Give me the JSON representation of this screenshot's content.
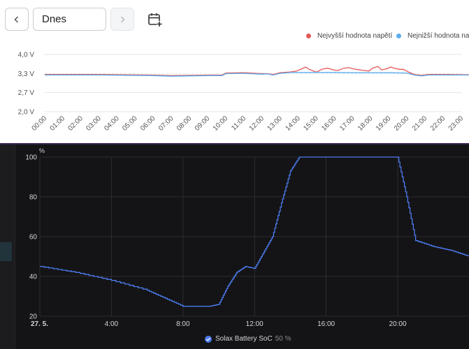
{
  "toolbar": {
    "date_value": "Dnes",
    "prev_icon": "chevron-left-icon",
    "next_icon": "chevron-right-icon",
    "calendar_icon": "calendar-add-icon"
  },
  "voltage_chart_data": {
    "type": "line",
    "ylabels": [
      "4,0 V",
      "3,3 V",
      "2,7 V",
      "2,0 V"
    ],
    "ylim": [
      2.0,
      4.0
    ],
    "categories": [
      "00:00",
      "01:00",
      "02:00",
      "03:00",
      "04:00",
      "05:00",
      "06:00",
      "07:00",
      "08:00",
      "09:00",
      "10:00",
      "11:00",
      "12:00",
      "13:00",
      "14:00",
      "15:00",
      "16:00",
      "17:00",
      "18:00",
      "19:00",
      "20:00",
      "21:00",
      "22:00",
      "23:00"
    ],
    "series": [
      {
        "name": "Nejvyšší hodnota napětí",
        "color": "#e45858",
        "x": [
          0,
          3,
          6,
          7,
          9,
          9.8,
          10,
          11,
          12,
          12.3,
          12.6,
          13,
          13.6,
          13.9,
          14.2,
          14.4,
          14.6,
          15,
          15.3,
          15.6,
          16,
          16.2,
          16.5,
          16.8,
          17,
          17.5,
          17.9,
          18.1,
          18.4,
          18.6,
          18.9,
          19.1,
          19.3,
          19.6,
          19.8,
          20.1,
          20.4,
          20.8,
          21.2,
          22,
          23.5
        ],
        "values": [
          3.3,
          3.3,
          3.28,
          3.26,
          3.28,
          3.28,
          3.35,
          3.36,
          3.33,
          3.33,
          3.3,
          3.36,
          3.39,
          3.42,
          3.5,
          3.56,
          3.48,
          3.38,
          3.48,
          3.52,
          3.45,
          3.44,
          3.52,
          3.54,
          3.5,
          3.45,
          3.42,
          3.52,
          3.58,
          3.46,
          3.5,
          3.56,
          3.52,
          3.48,
          3.48,
          3.38,
          3.3,
          3.27,
          3.3,
          3.3,
          3.29
        ]
      },
      {
        "name": "Nejnižší hodnota napětí",
        "color": "#5aaeee",
        "x": [
          0,
          3,
          6,
          7,
          9,
          9.8,
          10,
          11,
          12,
          12.3,
          12.6,
          13,
          13.6,
          14,
          15,
          16,
          17,
          18,
          19,
          20,
          20.4,
          20.8,
          21.2,
          22,
          23.5
        ],
        "values": [
          3.28,
          3.28,
          3.26,
          3.24,
          3.26,
          3.26,
          3.33,
          3.34,
          3.31,
          3.32,
          3.28,
          3.34,
          3.37,
          3.37,
          3.37,
          3.37,
          3.36,
          3.36,
          3.36,
          3.35,
          3.28,
          3.25,
          3.28,
          3.28,
          3.28
        ]
      }
    ]
  },
  "soc_chart_data": {
    "type": "line",
    "unit": "%",
    "ylabels": [
      "100",
      "80",
      "60",
      "40",
      "20"
    ],
    "ylim": [
      20,
      100
    ],
    "xlabels": [
      "27. 5.",
      "4:00",
      "8:00",
      "12:00",
      "16:00",
      "20:00"
    ],
    "xlim": [
      0,
      24
    ],
    "series": [
      {
        "name": "Solax Battery SoC",
        "current_value": "50 %",
        "color": "#4c7bf0",
        "x": [
          0,
          2,
          4,
          6,
          7,
          8,
          9,
          9.5,
          10,
          10.5,
          11,
          11.5,
          12,
          12.5,
          13,
          13.5,
          14,
          14.5,
          15,
          16,
          17,
          18,
          19,
          20,
          20.5,
          21,
          22,
          23,
          24
        ],
        "values": [
          45,
          42,
          38,
          33,
          29,
          25,
          25,
          25,
          26,
          35,
          42,
          45,
          44,
          52,
          60,
          77,
          93,
          100,
          100,
          100,
          100,
          100,
          100,
          100,
          80,
          58,
          55,
          53,
          50
        ]
      }
    ]
  }
}
